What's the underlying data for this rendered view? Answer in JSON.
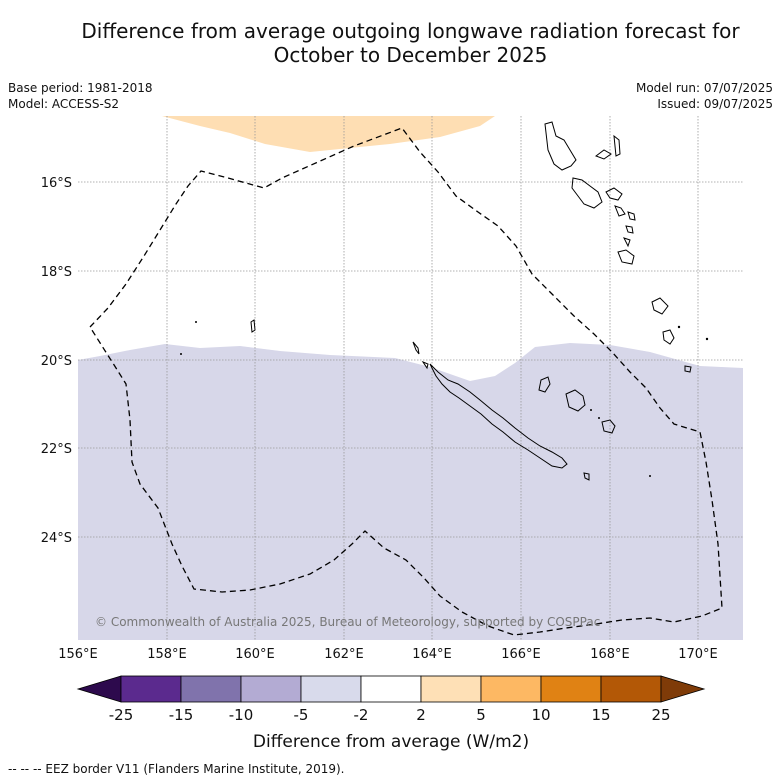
{
  "header": {
    "title": "Difference from average outgoing longwave radiation forecast for\nOctober to December 2025",
    "base_period": "Base period: 1981-2018",
    "model": "Model: ACCESS-S2",
    "model_run": "Model run: 07/07/2025",
    "issued": "Issued: 09/07/2025"
  },
  "map": {
    "lat_labels": [
      "16°S",
      "18°S",
      "20°S",
      "22°S",
      "24°S"
    ],
    "lon_labels": [
      "156°E",
      "158°E",
      "160°E",
      "162°E",
      "164°E",
      "166°E",
      "168°E",
      "170°E"
    ],
    "copyright": "© Commonwealth of Australia 2025, Bureau of Meteorology, supported by COSPPac",
    "colors": {
      "light_purple": "#d7d7e9",
      "light_orange": "#fedeb3"
    }
  },
  "colorbar": {
    "title": "Difference from average (W/m2)",
    "ticks": [
      "-25",
      "-15",
      "-10",
      "-5",
      "-2",
      "2",
      "5",
      "10",
      "15",
      "25"
    ],
    "colors": [
      "#2d0a4d",
      "#5b2a8e",
      "#8073ac",
      "#b3abd3",
      "#d8daeb",
      "#ffffff",
      "#fee0b6",
      "#fdb863",
      "#e08214",
      "#b35806",
      "#7f3b08"
    ]
  },
  "footer": {
    "legend": "-- -- -- EEZ border V11 (Flanders Marine Institute, 2019)."
  }
}
